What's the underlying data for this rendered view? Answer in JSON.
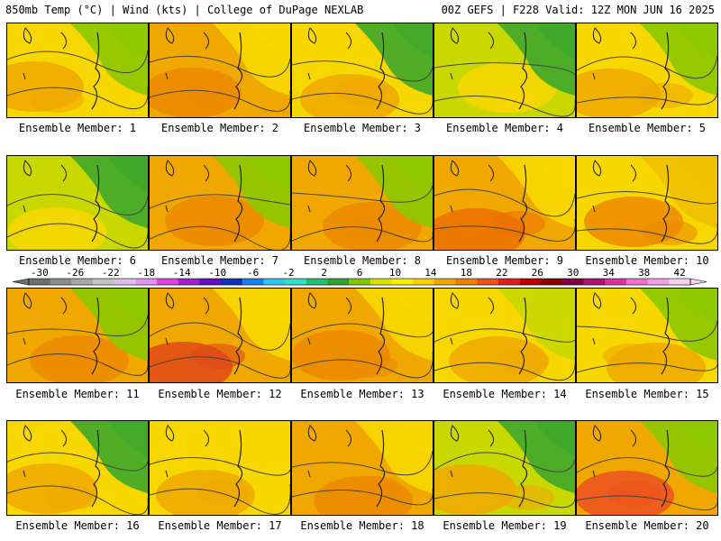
{
  "header": {
    "left": "850mb Temp (°C) | Wind (kts) | College of DuPage NEXLAB",
    "right": "00Z GEFS | F228 Valid: 12Z MON JUN 16 2025"
  },
  "caption_prefix": "Ensemble Member: ",
  "members": [
    {
      "number": "1",
      "base": "#f7d700",
      "warm": "#f0a800",
      "cool": "#8cc800"
    },
    {
      "number": "2",
      "base": "#f0a800",
      "warm": "#ec8a00",
      "cool": "#f7d700"
    },
    {
      "number": "3",
      "base": "#f7d700",
      "warm": "#f0a800",
      "cool": "#3fa82a"
    },
    {
      "number": "4",
      "base": "#c8d800",
      "warm": "#f7d700",
      "cool": "#3fa82a"
    },
    {
      "number": "5",
      "base": "#f7d700",
      "warm": "#f0a800",
      "cool": "#8cc800"
    },
    {
      "number": "6",
      "base": "#c8d800",
      "warm": "#f7d700",
      "cool": "#3fa82a"
    },
    {
      "number": "7",
      "base": "#f0a800",
      "warm": "#ec8a00",
      "cool": "#8cc800"
    },
    {
      "number": "8",
      "base": "#f0a800",
      "warm": "#ec8a00",
      "cool": "#8cc800"
    },
    {
      "number": "9",
      "base": "#f0a800",
      "warm": "#ec7000",
      "cool": "#f7d700"
    },
    {
      "number": "10",
      "base": "#f7d700",
      "warm": "#ec8a00",
      "cool": "#f0c000"
    },
    {
      "number": "11",
      "base": "#f0a800",
      "warm": "#ec8a00",
      "cool": "#8cc800"
    },
    {
      "number": "12",
      "base": "#f0a800",
      "warm": "#e04818",
      "cool": "#f7d700"
    },
    {
      "number": "13",
      "base": "#f0a800",
      "warm": "#ec8a00",
      "cool": "#f7d700"
    },
    {
      "number": "14",
      "base": "#f7d700",
      "warm": "#f0a800",
      "cool": "#c8d800"
    },
    {
      "number": "15",
      "base": "#f7d700",
      "warm": "#f0a800",
      "cool": "#8cc800"
    },
    {
      "number": "16",
      "base": "#f7d700",
      "warm": "#f0a800",
      "cool": "#3fa82a"
    },
    {
      "number": "17",
      "base": "#f7d700",
      "warm": "#f0a800",
      "cool": "#f7d700"
    },
    {
      "number": "18",
      "base": "#f0a800",
      "warm": "#ec8a00",
      "cool": "#f7d700"
    },
    {
      "number": "19",
      "base": "#c8d800",
      "warm": "#f0a800",
      "cool": "#3fa82a"
    },
    {
      "number": "20",
      "base": "#f0a800",
      "warm": "#ec5020",
      "cool": "#8cc800"
    }
  ],
  "colorbar": {
    "labels": [
      "-30",
      "-26",
      "-22",
      "-18",
      "-14",
      "-10",
      "-6",
      "-2",
      "2",
      "6",
      "10",
      "14",
      "18",
      "22",
      "26",
      "30",
      "34",
      "38",
      "42"
    ],
    "colors": [
      "#6e6e6e",
      "#8c8c8c",
      "#a8a8a8",
      "#c4c4c4",
      "#dcbfe8",
      "#e690f0",
      "#e040e0",
      "#a020d0",
      "#6010c0",
      "#1030c0",
      "#1880f0",
      "#30c8f0",
      "#30e0c8",
      "#20c070",
      "#30a030",
      "#80c800",
      "#d8e000",
      "#f7f000",
      "#f7d000",
      "#f0a800",
      "#ec8000",
      "#ec5020",
      "#e02020",
      "#c00000",
      "#900000",
      "#800040",
      "#b01070",
      "#e030a0",
      "#f070d0",
      "#f0a0e0",
      "#f8d0f0"
    ]
  }
}
